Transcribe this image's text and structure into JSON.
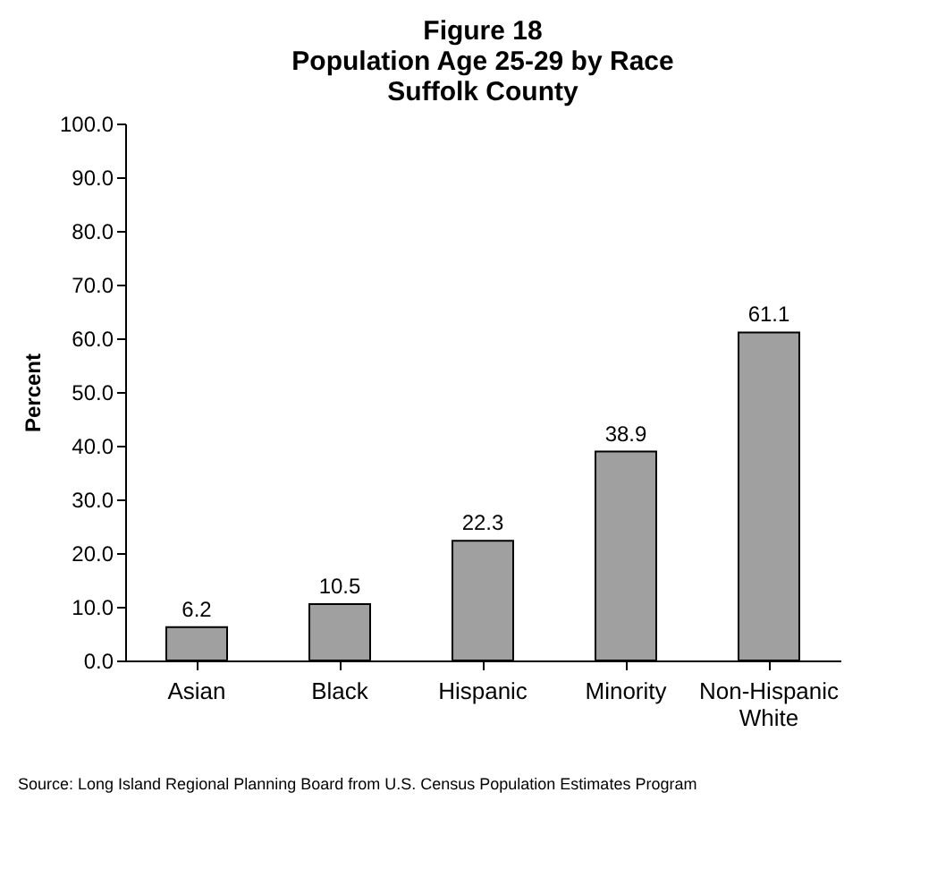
{
  "chart_data": {
    "type": "bar",
    "title": "Figure 18\nPopulation Age 25-29 by Race\nSuffolk County",
    "ylabel": "Percent",
    "categories": [
      "Asian",
      "Black",
      "Hispanic",
      "Minority",
      "Non-Hispanic White"
    ],
    "values": [
      6.2,
      10.5,
      22.3,
      38.9,
      61.1
    ],
    "color": "#a0a0a0",
    "data_labels": true,
    "grid": false,
    "ylim": [
      0,
      100
    ],
    "yticks": [
      {
        "value": 0,
        "label": "0.0"
      },
      {
        "value": 10,
        "label": "10.0"
      },
      {
        "value": 20,
        "label": "20.0"
      },
      {
        "value": 30,
        "label": "30.0"
      },
      {
        "value": 40,
        "label": "40.0"
      },
      {
        "value": 50,
        "label": "50.0"
      },
      {
        "value": 60,
        "label": "60.0"
      },
      {
        "value": 70,
        "label": "70.0"
      },
      {
        "value": 80,
        "label": "80.0"
      },
      {
        "value": 90,
        "label": "90.0"
      },
      {
        "value": 100,
        "label": "100.0"
      }
    ],
    "annotations": [
      "Source: Long Island Regional Planning Board from U.S. Census Population Estimates Program"
    ]
  }
}
